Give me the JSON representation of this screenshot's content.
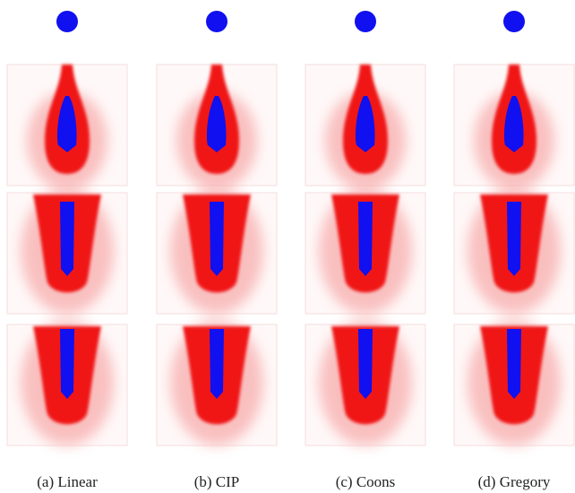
{
  "captions": [
    "(a) Linear",
    "(b) CIP",
    "(c) Coons",
    "(d) Gregory"
  ]
}
